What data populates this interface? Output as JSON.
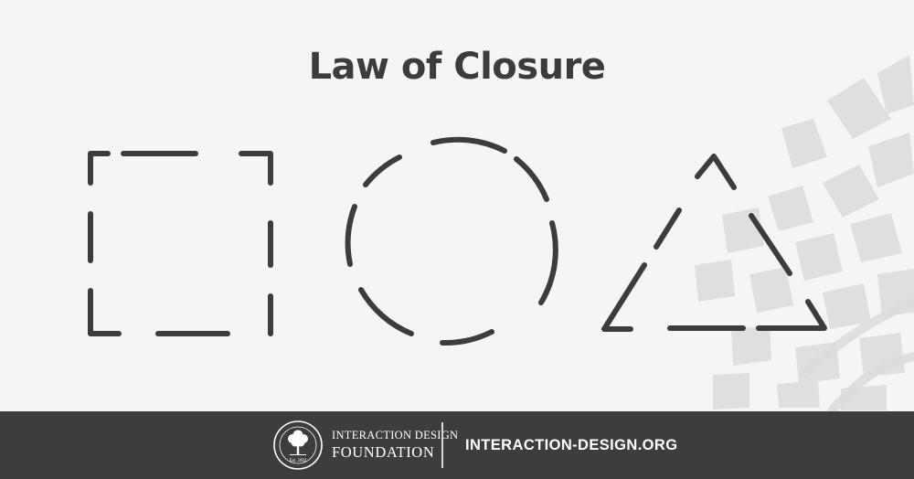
{
  "title": "Law of Closure",
  "colors": {
    "background": "#f5f5f5",
    "stroke": "#3c3c3c",
    "decoration": "#dcdcdc",
    "footer": "#3d3d3d",
    "footer_text": "#ffffff"
  },
  "diagram": {
    "shapes": [
      "dashed-square",
      "dashed-circle",
      "dashed-triangle"
    ]
  },
  "footer": {
    "logo_icon": "tree-seal-icon",
    "org_line1": "INTERACTION DESIGN",
    "org_line2": "FOUNDATION",
    "seal_text": "Est. 2002",
    "url": "INTERACTION-DESIGN.ORG"
  }
}
